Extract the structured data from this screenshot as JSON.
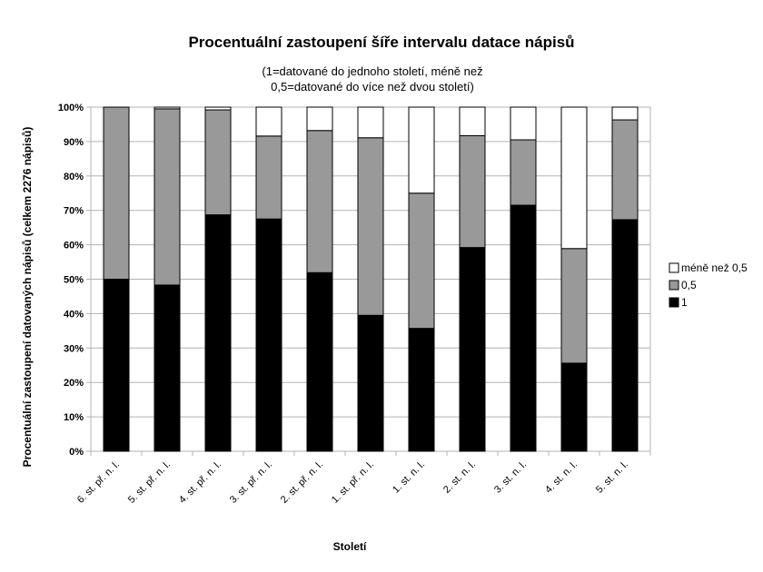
{
  "chart_data": {
    "type": "bar",
    "stacked": true,
    "normalized": true,
    "title": "Procentuální zastoupení šíře intervalu datace nápisů",
    "subtitle": [
      "(1=datované do jednoho století, méně než",
      "0,5=datované do více než dvou století)"
    ],
    "xlabel": "Století",
    "ylabel": "Procentuální zastoupení datovaných nápisů (celkem 2276 nápisů)",
    "ylim": [
      0,
      100
    ],
    "yticks": [
      "0%",
      "10%",
      "20%",
      "30%",
      "40%",
      "50%",
      "60%",
      "70%",
      "80%",
      "90%",
      "100%"
    ],
    "grid": true,
    "legend_position": "right",
    "categories": [
      "6. st. př. n. l.",
      "5. st. př. n. l.",
      "4. st. př. n. l.",
      "3. st. př. n. l.",
      "2. st. př. n. l.",
      "1. st. př. n. l.",
      "1. st. n. l.",
      "2. st. n. l.",
      "3. st. n. l.",
      "4. st. n. l.",
      "5. st. n. l."
    ],
    "series": [
      {
        "name": "1",
        "color": "#000000",
        "values": [
          50,
          48.3,
          68.7,
          67.5,
          51.9,
          39.5,
          35.7,
          59.2,
          71.5,
          25.6,
          67.3
        ]
      },
      {
        "name": "0,5",
        "color": "#999999",
        "values": [
          50,
          51.2,
          30.5,
          24.1,
          41.3,
          51.6,
          39.3,
          32.5,
          19.0,
          33.3,
          29.0
        ]
      },
      {
        "name": "méně než 0,5",
        "color": "#ffffff",
        "values": [
          0,
          0.5,
          0.8,
          8.4,
          6.8,
          8.9,
          25.0,
          8.3,
          9.5,
          41.1,
          3.7
        ]
      }
    ],
    "legend_order": [
      "méně než 0,5",
      "0,5",
      "1"
    ]
  }
}
